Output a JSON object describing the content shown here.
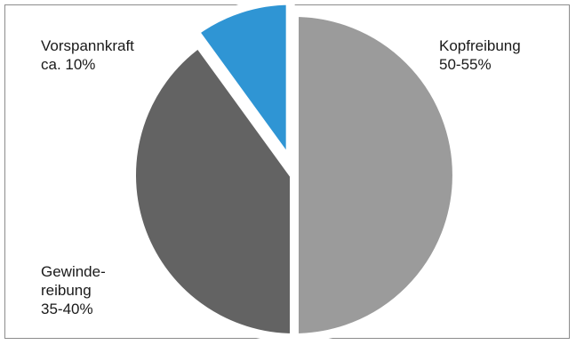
{
  "chart_data": {
    "type": "pie",
    "title": "",
    "legend": "none",
    "slices": [
      {
        "name": "Kopfreibung",
        "label": "Kopfreibung\n50-55%",
        "value": 50,
        "color": "#9b9b9b",
        "explode": false
      },
      {
        "name": "Gewindereibung",
        "label": "Gewinde-\nreibung\n35-40%",
        "value": 40,
        "color": "#636363",
        "explode": false
      },
      {
        "name": "Vorspannkraft",
        "label": "Vorspannkraft\nca. 10%",
        "value": 10,
        "color": "#2f95d4",
        "explode": true
      }
    ]
  }
}
